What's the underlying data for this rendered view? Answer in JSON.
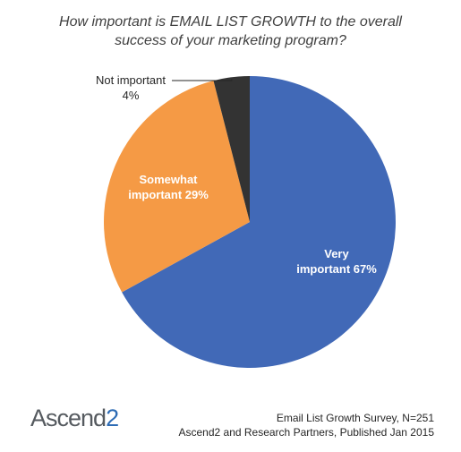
{
  "title_line1": "How important is EMAIL LIST GROWTH to the overall",
  "title_line2": "success of your marketing program?",
  "chart_data": {
    "type": "pie",
    "title": "How important is EMAIL LIST GROWTH to the overall success of your marketing program?",
    "slices": [
      {
        "label": "Very important",
        "value": 67,
        "color": "#4169b7",
        "label_lines": [
          "Very",
          "important 67%"
        ]
      },
      {
        "label": "Somewhat important",
        "value": 29,
        "color": "#f59a45",
        "label_lines": [
          "Somewhat",
          "important 29%"
        ]
      },
      {
        "label": "Not important",
        "value": 4,
        "color": "#333333",
        "label_lines": [
          "Not important",
          "4%"
        ]
      }
    ]
  },
  "logo": {
    "main": "Ascend",
    "accent": "2"
  },
  "source": {
    "line1": "Email List Growth Survey, N=251",
    "line2": "Ascend2 and Research Partners, Published Jan 2015"
  }
}
